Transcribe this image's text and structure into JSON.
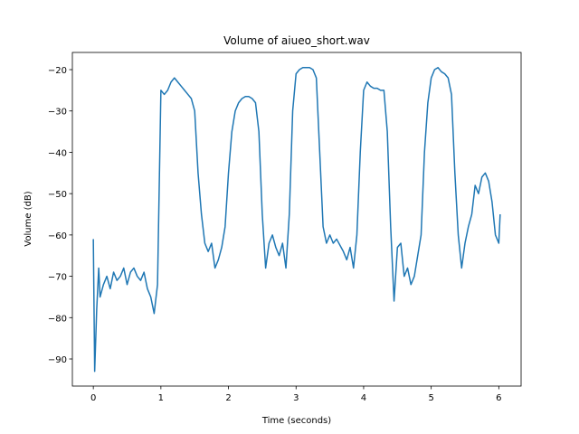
{
  "chart_data": {
    "type": "line",
    "title": "Volume of aiueo_short.wav",
    "x_label": "Time (seconds)",
    "y_label": "Volume (dB)",
    "x": [
      0,
      0.02,
      0.05,
      0.08,
      0.1,
      0.15,
      0.2,
      0.25,
      0.3,
      0.35,
      0.4,
      0.45,
      0.5,
      0.55,
      0.6,
      0.65,
      0.7,
      0.75,
      0.8,
      0.85,
      0.9,
      0.95,
      1.0,
      1.05,
      1.1,
      1.15,
      1.2,
      1.25,
      1.3,
      1.35,
      1.4,
      1.45,
      1.5,
      1.55,
      1.6,
      1.65,
      1.7,
      1.75,
      1.8,
      1.85,
      1.9,
      1.95,
      2.0,
      2.05,
      2.1,
      2.15,
      2.2,
      2.25,
      2.3,
      2.35,
      2.4,
      2.45,
      2.5,
      2.55,
      2.6,
      2.65,
      2.7,
      2.75,
      2.8,
      2.85,
      2.9,
      2.95,
      3.0,
      3.05,
      3.1,
      3.15,
      3.2,
      3.25,
      3.3,
      3.35,
      3.4,
      3.45,
      3.5,
      3.55,
      3.6,
      3.7,
      3.75,
      3.8,
      3.85,
      3.9,
      3.95,
      4.0,
      4.05,
      4.1,
      4.15,
      4.2,
      4.25,
      4.3,
      4.35,
      4.4,
      4.45,
      4.5,
      4.55,
      4.6,
      4.65,
      4.7,
      4.75,
      4.8,
      4.85,
      4.9,
      4.95,
      5.0,
      5.05,
      5.1,
      5.15,
      5.2,
      5.25,
      5.3,
      5.35,
      5.4,
      5.45,
      5.5,
      5.55,
      5.6,
      5.65,
      5.7,
      5.75,
      5.8,
      5.85,
      5.9,
      5.95,
      6.0,
      6.02
    ],
    "series": [
      {
        "name": "volume",
        "color": "#1f77b4",
        "values": [
          -61,
          -93,
          -78,
          -68,
          -75,
          -72,
          -70,
          -73,
          -69,
          -71,
          -70,
          -68,
          -72,
          -69,
          -68,
          -70,
          -71,
          -69,
          -73,
          -75,
          -79,
          -72,
          -25,
          -26,
          -25,
          -23,
          -22,
          -23,
          -24,
          -25,
          -26,
          -27,
          -30,
          -45,
          -55,
          -62,
          -64,
          -62,
          -68,
          -66,
          -63,
          -58,
          -45,
          -35,
          -30,
          -28,
          -27,
          -26.5,
          -26.5,
          -27,
          -28,
          -35,
          -55,
          -68,
          -62,
          -60,
          -63,
          -65,
          -62,
          -68,
          -55,
          -30,
          -21,
          -20,
          -19.5,
          -19.5,
          -19.5,
          -20,
          -22,
          -40,
          -58,
          -62,
          -60,
          -62,
          -61,
          -64,
          -66,
          -63,
          -68,
          -60,
          -40,
          -25,
          -23,
          -24,
          -24.5,
          -24.5,
          -25,
          -25,
          -35,
          -58,
          -76,
          -63,
          -62,
          -70,
          -68,
          -72,
          -70,
          -65,
          -60,
          -40,
          -28,
          -22,
          -20,
          -19.5,
          -20.5,
          -21,
          -22,
          -26,
          -45,
          -60,
          -68,
          -62,
          -58,
          -55,
          -48,
          -50,
          -46,
          -45,
          -47,
          -52,
          -60,
          -62,
          -55
        ]
      }
    ],
    "xlim": [
      -0.31,
      6.33
    ],
    "ylim": [
      -96.56,
      -15.84
    ],
    "xticks": [
      0,
      1,
      2,
      3,
      4,
      5,
      6
    ],
    "yticks": [
      {
        "value": -90,
        "label": "−90"
      },
      {
        "value": -80,
        "label": "−80"
      },
      {
        "value": -70,
        "label": "−70"
      },
      {
        "value": -60,
        "label": "−60"
      },
      {
        "value": -50,
        "label": "−50"
      },
      {
        "value": -40,
        "label": "−40"
      },
      {
        "value": -30,
        "label": "−30"
      },
      {
        "value": -20,
        "label": "−20"
      }
    ]
  }
}
